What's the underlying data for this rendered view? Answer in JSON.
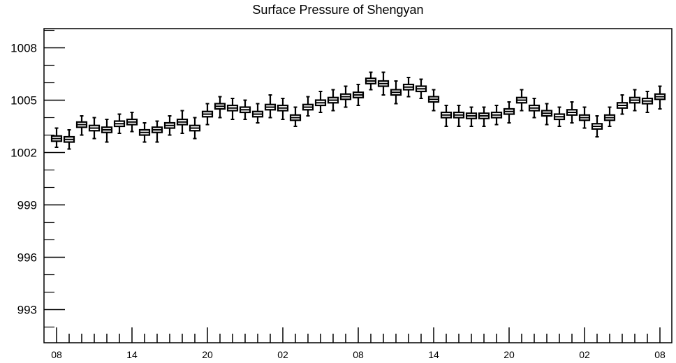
{
  "chart_data": {
    "type": "box",
    "title": "Surface Pressure of Shengyan",
    "xlabel": "",
    "ylabel": "",
    "ylim": [
      991.1,
      1009.1
    ],
    "y_ticks": [
      "993",
      "996",
      "999",
      "1002",
      "1005",
      "1008"
    ],
    "x_tick_labels": [
      "08",
      "14",
      "20",
      "02",
      "08",
      "14",
      "20",
      "02",
      "08"
    ],
    "grid": false,
    "series": [
      {
        "median": [
          1002.8,
          1002.75,
          1003.6,
          1003.4,
          1003.3,
          1003.65,
          1003.75,
          1003.15,
          1003.3,
          1003.55,
          1003.75,
          1003.4,
          1004.2,
          1004.65,
          1004.55,
          1004.45,
          1004.2,
          1004.6,
          1004.55,
          1004.0,
          1004.6,
          1004.85,
          1005.0,
          1005.2,
          1005.3,
          1006.1,
          1005.95,
          1005.45,
          1005.75,
          1005.65,
          1005.05,
          1004.15,
          1004.15,
          1004.1,
          1004.1,
          1004.15,
          1004.35,
          1005.0,
          1004.55,
          1004.25,
          1004.05,
          1004.3,
          1004.0,
          1003.5,
          1004.0,
          1004.7,
          1005.0,
          1004.95,
          1005.2
        ],
        "q1": [
          1002.65,
          1002.6,
          1003.45,
          1003.25,
          1003.15,
          1003.5,
          1003.6,
          1003.0,
          1003.15,
          1003.4,
          1003.6,
          1003.25,
          1004.05,
          1004.5,
          1004.4,
          1004.3,
          1004.05,
          1004.45,
          1004.4,
          1003.85,
          1004.45,
          1004.7,
          1004.85,
          1005.05,
          1005.15,
          1005.95,
          1005.8,
          1005.3,
          1005.6,
          1005.5,
          1004.9,
          1004.0,
          1004.0,
          1003.95,
          1003.95,
          1004.0,
          1004.2,
          1004.85,
          1004.4,
          1004.1,
          1003.9,
          1004.15,
          1003.85,
          1003.35,
          1003.85,
          1004.55,
          1004.85,
          1004.8,
          1005.05
        ],
        "q3": [
          1002.95,
          1002.9,
          1003.75,
          1003.55,
          1003.45,
          1003.8,
          1003.9,
          1003.3,
          1003.45,
          1003.7,
          1003.9,
          1003.55,
          1004.35,
          1004.8,
          1004.7,
          1004.6,
          1004.35,
          1004.75,
          1004.7,
          1004.15,
          1004.75,
          1005.0,
          1005.15,
          1005.35,
          1005.45,
          1006.25,
          1006.1,
          1005.6,
          1005.9,
          1005.8,
          1005.2,
          1004.3,
          1004.3,
          1004.25,
          1004.25,
          1004.3,
          1004.5,
          1005.15,
          1004.7,
          1004.4,
          1004.2,
          1004.45,
          1004.15,
          1003.65,
          1004.15,
          1004.85,
          1005.15,
          1005.1,
          1005.35
        ],
        "min": [
          1002.3,
          1002.2,
          1003.0,
          1002.8,
          1002.6,
          1003.1,
          1003.2,
          1002.6,
          1002.6,
          1003.0,
          1003.1,
          1002.8,
          1003.6,
          1004.0,
          1003.9,
          1003.9,
          1003.7,
          1004.0,
          1003.9,
          1003.5,
          1004.1,
          1004.3,
          1004.4,
          1004.6,
          1004.7,
          1005.6,
          1005.3,
          1004.8,
          1005.2,
          1005.1,
          1004.4,
          1003.5,
          1003.5,
          1003.5,
          1003.5,
          1003.6,
          1003.7,
          1004.4,
          1004.0,
          1003.6,
          1003.5,
          1003.7,
          1003.4,
          1002.9,
          1003.5,
          1004.2,
          1004.4,
          1004.3,
          1004.5
        ],
        "max": [
          1003.4,
          1003.3,
          1004.1,
          1004.0,
          1003.9,
          1004.2,
          1004.3,
          1003.7,
          1003.8,
          1004.1,
          1004.4,
          1004.0,
          1004.8,
          1005.2,
          1005.1,
          1005.0,
          1004.8,
          1005.3,
          1005.1,
          1004.6,
          1005.2,
          1005.5,
          1005.6,
          1005.8,
          1005.9,
          1006.6,
          1006.6,
          1006.1,
          1006.3,
          1006.2,
          1005.6,
          1004.7,
          1004.7,
          1004.6,
          1004.6,
          1004.7,
          1004.9,
          1005.6,
          1005.1,
          1004.8,
          1004.6,
          1004.9,
          1004.6,
          1004.1,
          1004.6,
          1005.3,
          1005.6,
          1005.5,
          1005.8
        ]
      }
    ]
  }
}
